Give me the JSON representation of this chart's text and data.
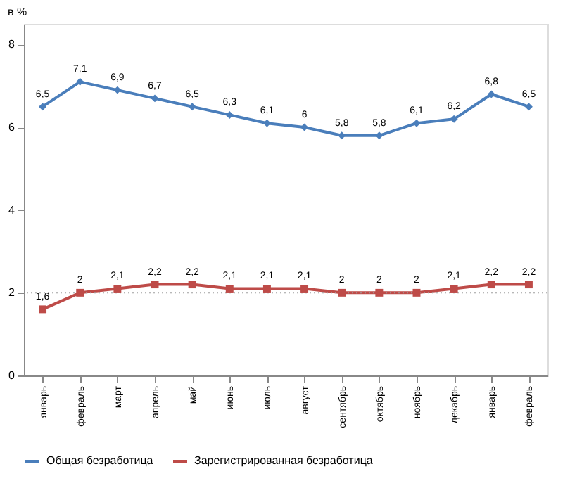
{
  "chart_data": {
    "type": "line",
    "title": "в %",
    "categories": [
      "январь",
      "февраль",
      "март",
      "апрель",
      "май",
      "июнь",
      "июль",
      "август",
      "сентябрь",
      "октябрь",
      "ноябрь",
      "декабрь",
      "январь",
      "февраль"
    ],
    "series": [
      {
        "name": "Общая безработица",
        "color": "#4a7ebb",
        "marker": "diamond",
        "values": [
          6.5,
          7.1,
          6.9,
          6.7,
          6.5,
          6.3,
          6.1,
          6.0,
          5.8,
          5.8,
          6.1,
          6.2,
          6.8,
          6.5
        ],
        "value_labels": [
          "6,5",
          "7,1",
          "6,9",
          "6,7",
          "6,5",
          "6,3",
          "6,1",
          "6",
          "5,8",
          "5,8",
          "6,1",
          "6,2",
          "6,8",
          "6,5"
        ]
      },
      {
        "name": "Зарегистрированная безработица",
        "color": "#be4b48",
        "marker": "square",
        "values": [
          1.6,
          2.0,
          2.1,
          2.2,
          2.2,
          2.1,
          2.1,
          2.1,
          2.0,
          2.0,
          2.0,
          2.1,
          2.2,
          2.2
        ],
        "value_labels": [
          "1,6",
          "2",
          "2,1",
          "2,2",
          "2,2",
          "2,1",
          "2,1",
          "2,1",
          "2",
          "2",
          "2",
          "2,1",
          "2,2",
          "2,2"
        ]
      }
    ],
    "ylim": [
      0,
      8.5
    ],
    "yticks": [
      0,
      2,
      4,
      6,
      8
    ],
    "grid": false,
    "legend": "bottom",
    "ref_lines": [
      {
        "axis": "y",
        "value": 2,
        "color": "#a0a0a0",
        "line_style": "dotted"
      }
    ]
  }
}
